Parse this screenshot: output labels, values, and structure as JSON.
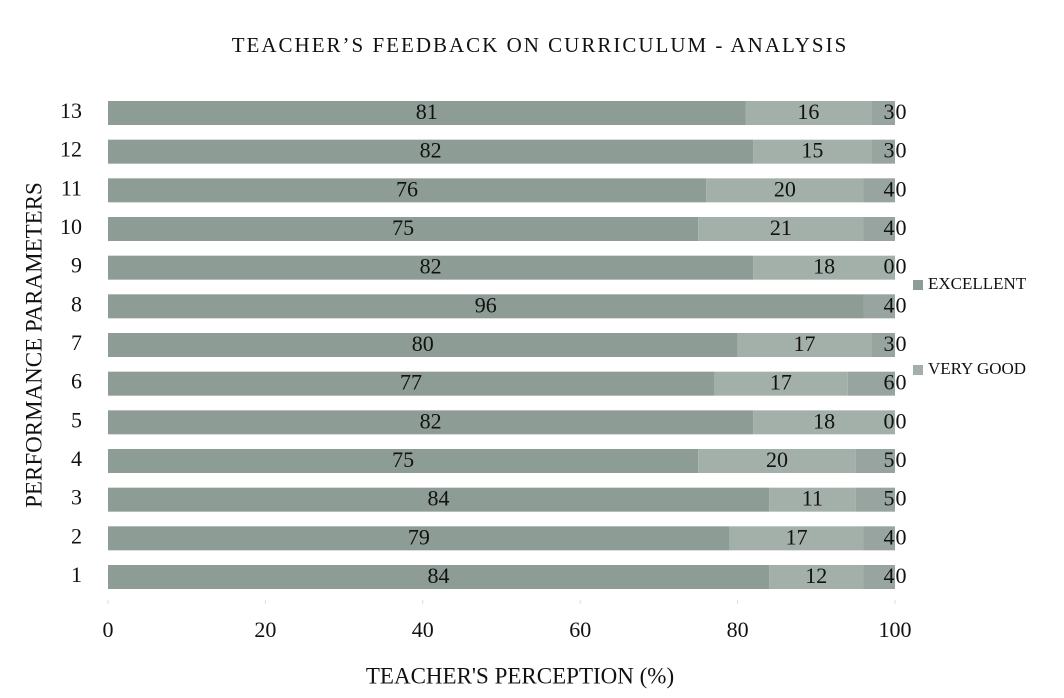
{
  "chart_data": {
    "type": "stacked_barh",
    "title": "TEACHER’S FEEDBACK ON CURRICULUM - ANALYSIS",
    "xlabel": "TEACHER'S PERCEPTION  (%)",
    "ylabel": "PERFORMANCE PARAMETERS",
    "categories": [
      "1",
      "2",
      "3",
      "4",
      "5",
      "6",
      "7",
      "8",
      "9",
      "10",
      "11",
      "12",
      "13"
    ],
    "series": [
      {
        "name": "EXCELLENT",
        "color": "#8e9c96",
        "values": [
          84,
          79,
          84,
          75,
          82,
          77,
          80,
          96,
          82,
          75,
          76,
          82,
          81
        ]
      },
      {
        "name": "VERY GOOD",
        "color": "#a3b0aa",
        "values": [
          12,
          17,
          11,
          20,
          18,
          17,
          17,
          null,
          18,
          21,
          20,
          15,
          16
        ]
      },
      {
        "color": "#98a49f",
        "values": [
          4,
          4,
          5,
          5,
          0,
          6,
          3,
          4,
          0,
          4,
          4,
          3,
          3
        ]
      },
      {
        "color": "#8a9691",
        "values": [
          0,
          0,
          0,
          0,
          0,
          0,
          0,
          0,
          0,
          0,
          0,
          0,
          0
        ]
      }
    ],
    "xlim": [
      0,
      100
    ],
    "xticks": [
      0,
      20,
      40,
      60,
      80,
      100
    ],
    "legend": "right"
  }
}
